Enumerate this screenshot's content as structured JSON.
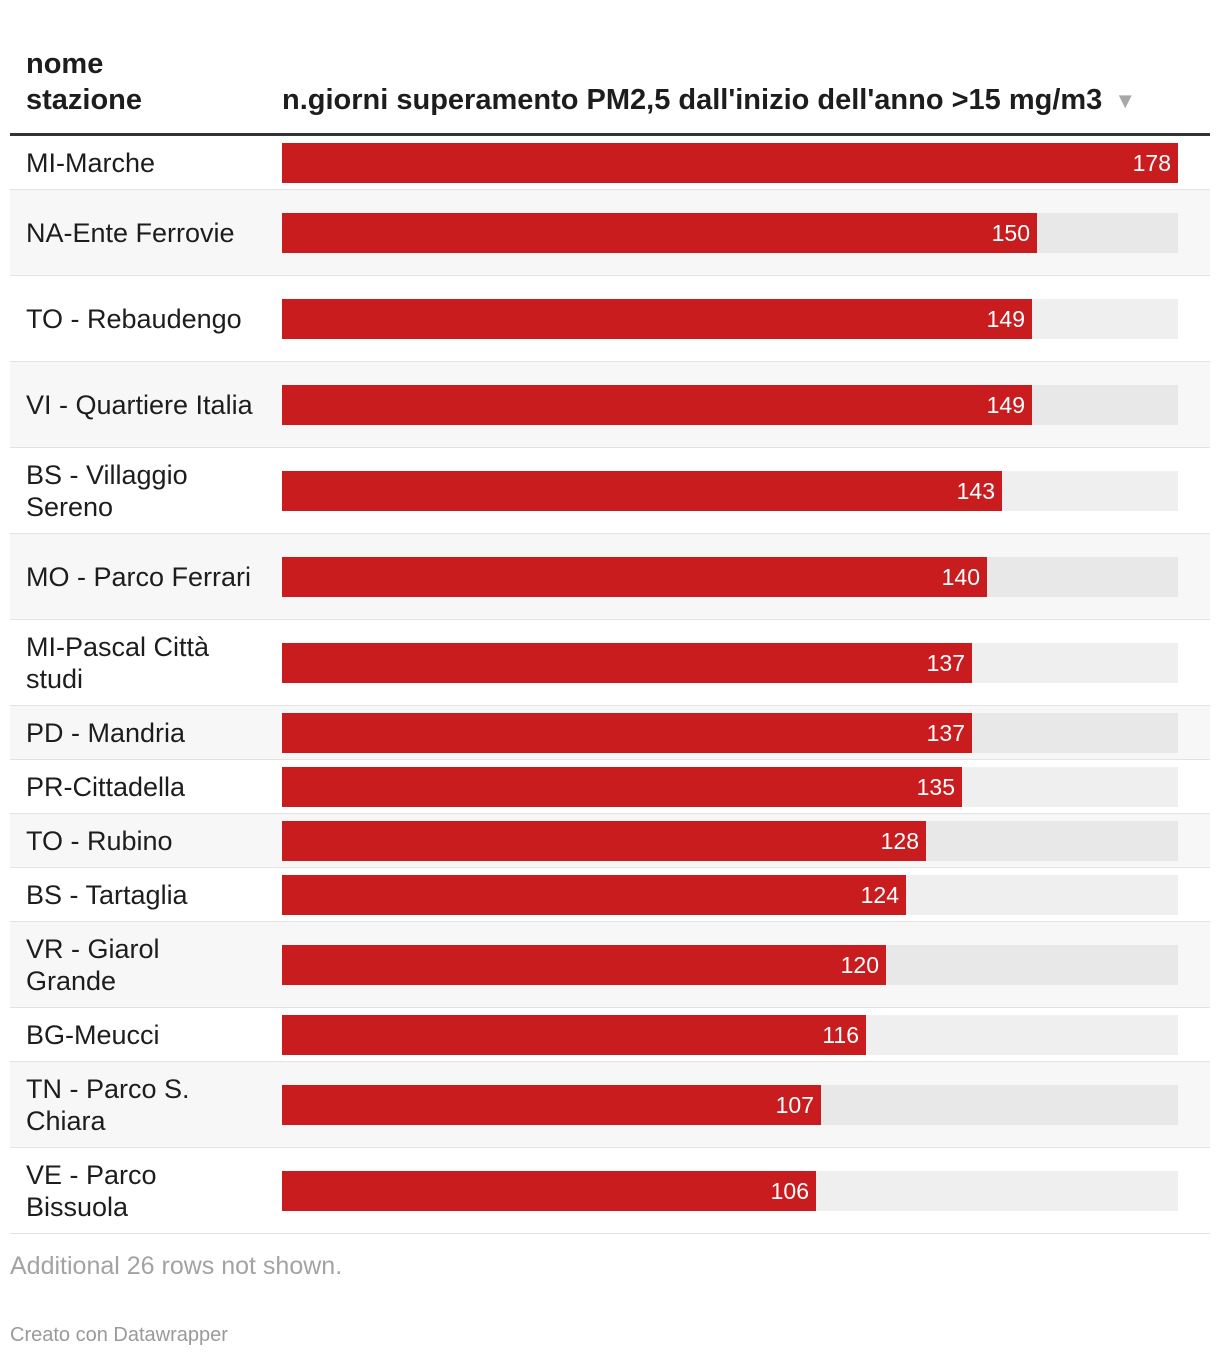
{
  "chart_data": {
    "type": "table",
    "columns": [
      "nome stazione",
      "n.giorni superamento PM2,5 dall'inizio dell'anno >15 mg/m3"
    ],
    "max_value": 178,
    "sort": "descending",
    "rows": [
      {
        "label": "MI-Marche",
        "value": 178
      },
      {
        "label": "NA-Ente Ferrovie",
        "value": 150
      },
      {
        "label": "TO - Rebaudengo",
        "value": 149
      },
      {
        "label": "VI - Quartiere Italia",
        "value": 149
      },
      {
        "label": "BS - Villaggio Sereno",
        "value": 143
      },
      {
        "label": "MO - Parco Ferrari",
        "value": 140
      },
      {
        "label": "MI-Pascal Città studi",
        "value": 137
      },
      {
        "label": "PD - Mandria",
        "value": 137
      },
      {
        "label": "PR-Cittadella",
        "value": 135
      },
      {
        "label": "TO - Rubino",
        "value": 128
      },
      {
        "label": "BS - Tartaglia",
        "value": 124
      },
      {
        "label": "VR - Giarol Grande",
        "value": 120
      },
      {
        "label": "BG-Meucci",
        "value": 116
      },
      {
        "label": "TN - Parco S. Chiara",
        "value": 107
      },
      {
        "label": "VE - Parco Bissuola",
        "value": 106
      }
    ]
  },
  "header": {
    "name_col": "nome stazione",
    "value_col": "n.giorni superamento PM2,5 dall'inizio dell'anno >15 mg/m3",
    "sort_icon": "▼"
  },
  "footer": {
    "note": "Additional 26 rows not shown.",
    "credit": "Creato con Datawrapper"
  },
  "colors": {
    "bar": "#c81c1e",
    "bar_bg_even": "#e8e8e8",
    "bar_bg_odd": "#efefef",
    "row_even": "#f7f7f7",
    "row_odd": "#ffffff"
  }
}
